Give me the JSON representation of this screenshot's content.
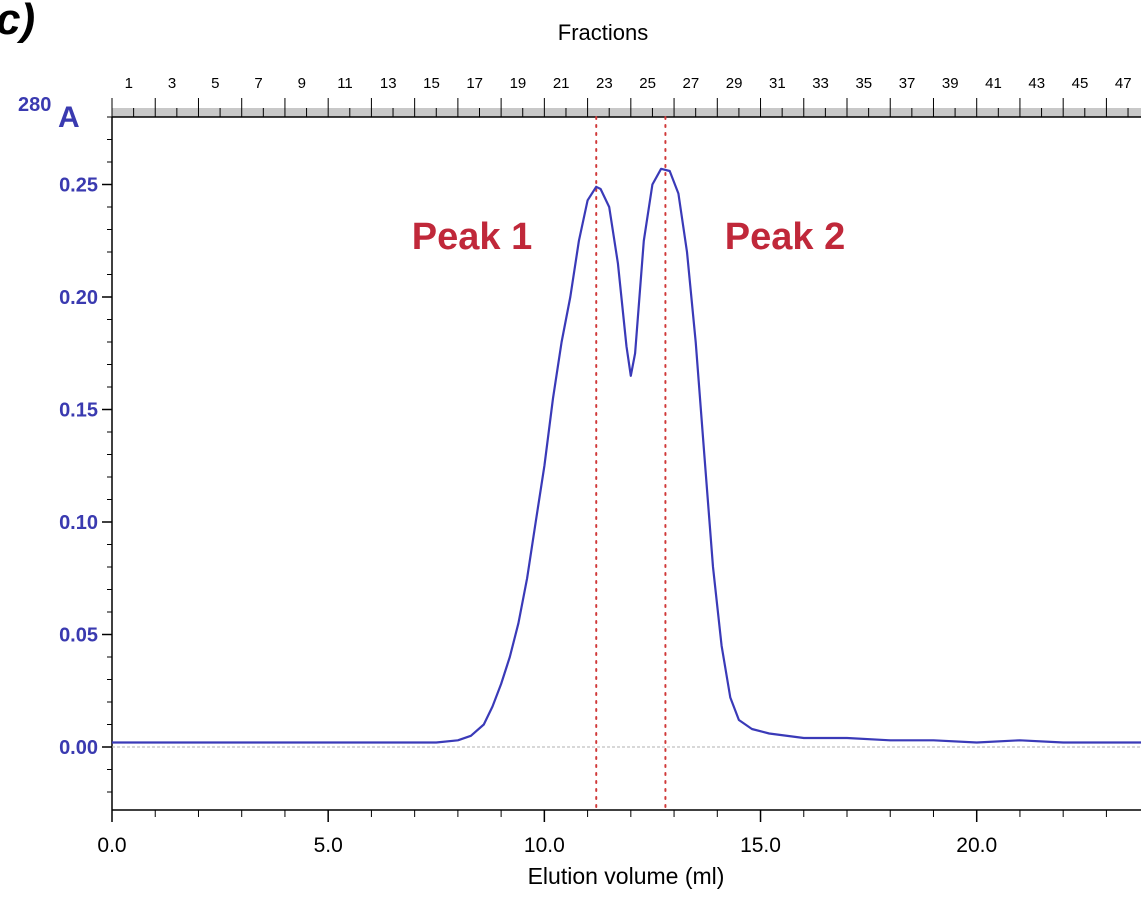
{
  "panel_label": "c)",
  "chart_data": {
    "type": "line",
    "top_axis_title": "Fractions",
    "xlabel": "Elution volume (ml)",
    "ylabel_main": "A",
    "ylabel_sup": "280",
    "xlim": [
      0,
      23.8
    ],
    "ylim": [
      -0.028,
      0.28
    ],
    "x_ticks": [
      0,
      5,
      10,
      15,
      20
    ],
    "x_tick_labels": [
      "0.0",
      "5.0",
      "10.0",
      "15.0",
      "20.0"
    ],
    "x_minor_step": 1,
    "y_ticks": [
      0,
      0.05,
      0.1,
      0.15,
      0.2,
      0.25
    ],
    "y_tick_labels": [
      "0.00",
      "0.05",
      "0.10",
      "0.15",
      "0.20",
      "0.25"
    ],
    "y_minor_step": 0.01,
    "fraction_width_ml": 0.5,
    "fraction_count": 48,
    "fraction_labels": [
      "1",
      "3",
      "5",
      "7",
      "9",
      "11",
      "13",
      "15",
      "17",
      "19",
      "21",
      "23",
      "25",
      "27",
      "29",
      "31",
      "33",
      "35",
      "37",
      "39",
      "41",
      "43",
      "45",
      "47"
    ],
    "series": [
      {
        "color": "#3a3ab8",
        "x": [
          0,
          1,
          2,
          3,
          4,
          5,
          6,
          7,
          7.5,
          8,
          8.3,
          8.6,
          8.8,
          9.0,
          9.2,
          9.4,
          9.6,
          9.8,
          10.0,
          10.2,
          10.4,
          10.6,
          10.8,
          11.0,
          11.2,
          11.3,
          11.5,
          11.7,
          11.9,
          12.0,
          12.1,
          12.3,
          12.5,
          12.7,
          12.9,
          13.1,
          13.3,
          13.5,
          13.7,
          13.9,
          14.1,
          14.3,
          14.5,
          14.8,
          15.2,
          16,
          17,
          18,
          19,
          20,
          21,
          22,
          23,
          23.8
        ],
        "y": [
          0.002,
          0.002,
          0.002,
          0.002,
          0.002,
          0.002,
          0.002,
          0.002,
          0.002,
          0.003,
          0.005,
          0.01,
          0.018,
          0.028,
          0.04,
          0.055,
          0.075,
          0.1,
          0.125,
          0.155,
          0.18,
          0.2,
          0.225,
          0.243,
          0.249,
          0.248,
          0.24,
          0.215,
          0.178,
          0.165,
          0.175,
          0.225,
          0.25,
          0.257,
          0.256,
          0.246,
          0.22,
          0.18,
          0.13,
          0.08,
          0.045,
          0.022,
          0.012,
          0.008,
          0.006,
          0.004,
          0.004,
          0.003,
          0.003,
          0.002,
          0.003,
          0.002,
          0.002,
          0.002
        ]
      }
    ],
    "reference_lines": [
      {
        "x": 11.2,
        "color": "#d03a3a"
      },
      {
        "x": 12.8,
        "color": "#d03a3a"
      }
    ],
    "annotations": [
      {
        "text": "Peak 1",
        "color": "#c0283a"
      },
      {
        "text": "Peak 2",
        "color": "#c0283a"
      }
    ],
    "grid": false
  }
}
